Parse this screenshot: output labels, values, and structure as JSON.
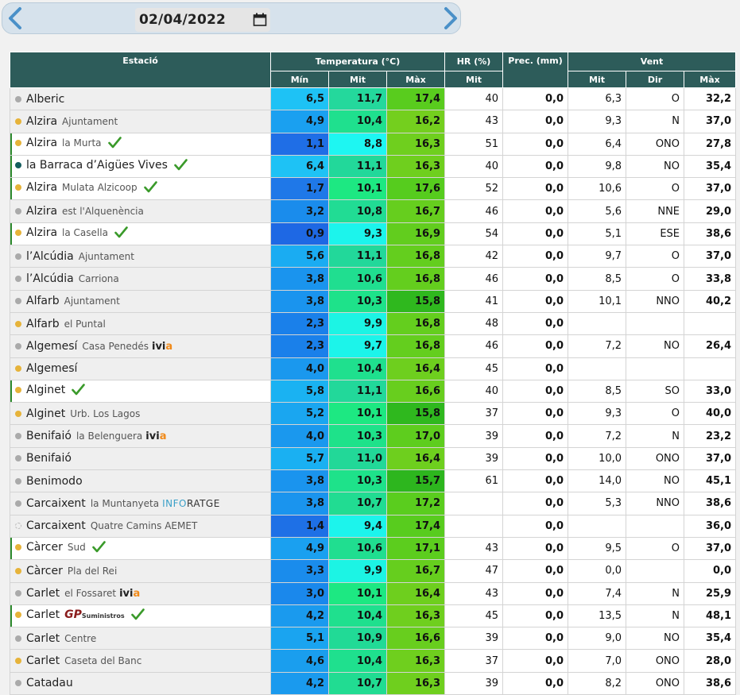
{
  "date": "02/04/2022",
  "headers": {
    "station": "Estació",
    "temperature": "Temperatura (°C)",
    "hr": "HR (%)",
    "prec": "Prec. (mm)",
    "wind": "Vent",
    "t_min": "Mín",
    "t_mit": "Mit",
    "t_max": "Màx",
    "hr_mit": "Mit",
    "w_mit": "Mit",
    "w_dir": "Dir",
    "w_max": "Màx"
  },
  "colors": {
    "header_bg": "#2d5c5a",
    "dot_gray": "#aaaaaa",
    "dot_orange": "#e6b33a",
    "dot_teal": "#155e5e",
    "check_green": "#3a9a2a"
  },
  "rows": [
    {
      "name": "Alberic",
      "sub": "",
      "dot": "gray",
      "check": false,
      "marked": false,
      "min": "6,5",
      "mit": "11,7",
      "max": "17,4",
      "hr": "40",
      "prec": "0,0",
      "wmit": "6,3",
      "wdir": "O",
      "wmax": "32,2",
      "cmin": "#1ec2f5",
      "cmit": "#24d89c",
      "cmax": "#59cc1e"
    },
    {
      "name": "Alzira",
      "sub": "Ajuntament",
      "dot": "orange",
      "check": false,
      "marked": false,
      "min": "4,9",
      "mit": "10,4",
      "max": "16,2",
      "hr": "43",
      "prec": "0,0",
      "wmit": "9,3",
      "wdir": "N",
      "wmax": "37,0",
      "cmin": "#1aa0f0",
      "cmit": "#1fe08e",
      "cmax": "#74cf1e"
    },
    {
      "name": "Alzira",
      "sub": "la Murta",
      "dot": "orange",
      "check": true,
      "marked": true,
      "min": "1,1",
      "mit": "8,8",
      "max": "16,3",
      "hr": "51",
      "prec": "0,0",
      "wmit": "6,4",
      "wdir": "ONO",
      "wmax": "27,8",
      "cmin": "#1f6ee6",
      "cmit": "#1ef6f2",
      "cmax": "#6fcf1e"
    },
    {
      "name": "la Barraca d’Aigües Vives",
      "sub": "",
      "dot": "teal",
      "check": true,
      "marked": true,
      "min": "6,4",
      "mit": "11,1",
      "max": "16,3",
      "hr": "40",
      "prec": "0,0",
      "wmit": "9,8",
      "wdir": "NO",
      "wmax": "35,4",
      "cmin": "#1ec2f5",
      "cmit": "#22d89a",
      "cmax": "#6fcf1e"
    },
    {
      "name": "Alzira",
      "sub": "Mulata Alzicoop",
      "dot": "orange",
      "check": true,
      "marked": true,
      "min": "1,7",
      "mit": "10,1",
      "max": "17,6",
      "hr": "52",
      "prec": "0,0",
      "wmit": "10,6",
      "wdir": "O",
      "wmax": "37,0",
      "cmin": "#1f78e8",
      "cmit": "#1de882",
      "cmax": "#56cc1e"
    },
    {
      "name": "Alzira",
      "sub": "est l'Alquenència",
      "dot": "gray",
      "check": false,
      "marked": false,
      "min": "3,2",
      "mit": "10,8",
      "max": "16,7",
      "hr": "46",
      "prec": "0,0",
      "wmit": "5,6",
      "wdir": "NNE",
      "wmax": "29,0",
      "cmin": "#1a8cec",
      "cmit": "#21dc94",
      "cmax": "#66ce1e"
    },
    {
      "name": "Alzira",
      "sub": "la Casella",
      "dot": "orange",
      "check": true,
      "marked": true,
      "min": "0,9",
      "mit": "9,3",
      "max": "16,9",
      "hr": "54",
      "prec": "0,0",
      "wmit": "5,1",
      "wdir": "ESE",
      "wmax": "38,6",
      "cmin": "#1e68e4",
      "cmit": "#1cf4ec",
      "cmax": "#62cd1e"
    },
    {
      "name": "l’Alcúdia",
      "sub": "Ajuntament",
      "dot": "gray",
      "check": false,
      "marked": false,
      "min": "5,6",
      "mit": "11,1",
      "max": "16,8",
      "hr": "42",
      "prec": "0,0",
      "wmit": "9,7",
      "wdir": "O",
      "wmax": "37,0",
      "cmin": "#1aacf2",
      "cmit": "#22d89a",
      "cmax": "#64ce1e"
    },
    {
      "name": "l’Alcúdia",
      "sub": "Carriona",
      "dot": "gray",
      "check": false,
      "marked": false,
      "min": "3,8",
      "mit": "10,6",
      "max": "16,8",
      "hr": "46",
      "prec": "0,0",
      "wmit": "8,5",
      "wdir": "O",
      "wmax": "33,8",
      "cmin": "#1a94ee",
      "cmit": "#20de90",
      "cmax": "#64ce1e"
    },
    {
      "name": "Alfarb",
      "sub": "Ajuntament",
      "dot": "gray",
      "check": false,
      "marked": false,
      "min": "3,8",
      "mit": "10,3",
      "max": "15,8",
      "hr": "41",
      "prec": "0,0",
      "wmit": "10,1",
      "wdir": "NNO",
      "wmax": "40,2",
      "cmin": "#1a94ee",
      "cmit": "#1ee28a",
      "cmax": "#2fb81e"
    },
    {
      "name": "Alfarb",
      "sub": "el Puntal",
      "dot": "orange",
      "check": false,
      "marked": false,
      "min": "2,3",
      "mit": "9,9",
      "max": "16,8",
      "hr": "48",
      "prec": "0,0",
      "wmit": "",
      "wdir": "",
      "wmax": "",
      "cmin": "#1a80ea",
      "cmit": "#1cf4e4",
      "cmax": "#64ce1e"
    },
    {
      "name": "Algemesí",
      "sub": "Casa Penedés",
      "dot": "gray",
      "check": false,
      "marked": false,
      "ivia": true,
      "min": "2,3",
      "mit": "9,7",
      "max": "16,8",
      "hr": "46",
      "prec": "0,0",
      "wmit": "7,2",
      "wdir": "NO",
      "wmax": "26,4",
      "cmin": "#1a80ea",
      "cmit": "#1cf4ea",
      "cmax": "#64ce1e"
    },
    {
      "name": "Algemesí",
      "sub": "",
      "dot": "orange",
      "check": false,
      "marked": false,
      "min": "4,0",
      "mit": "10,4",
      "max": "16,4",
      "hr": "45",
      "prec": "0,0",
      "wmit": "",
      "wdir": "",
      "wmax": "",
      "cmin": "#1a98ee",
      "cmit": "#1fe08e",
      "cmax": "#6ecf1e"
    },
    {
      "name": "Alginet",
      "sub": "",
      "dot": "orange",
      "check": true,
      "marked": true,
      "min": "5,8",
      "mit": "11,1",
      "max": "16,6",
      "hr": "40",
      "prec": "0,0",
      "wmit": "8,5",
      "wdir": "SO",
      "wmax": "33,0",
      "cmin": "#1ab2f2",
      "cmit": "#22d89a",
      "cmax": "#68ce1e"
    },
    {
      "name": "Alginet",
      "sub": "Urb. Los Lagos",
      "dot": "orange",
      "check": false,
      "marked": false,
      "min": "5,2",
      "mit": "10,1",
      "max": "15,8",
      "hr": "37",
      "prec": "0,0",
      "wmit": "9,3",
      "wdir": "O",
      "wmax": "40,0",
      "cmin": "#1aa6f0",
      "cmit": "#1de882",
      "cmax": "#2fb81e"
    },
    {
      "name": "Benifaió",
      "sub": "la Belenguera",
      "dot": "gray",
      "check": false,
      "marked": false,
      "ivia": true,
      "min": "4,0",
      "mit": "10,3",
      "max": "17,0",
      "hr": "39",
      "prec": "0,0",
      "wmit": "7,2",
      "wdir": "N",
      "wmax": "23,2",
      "cmin": "#1a98ee",
      "cmit": "#1ee28a",
      "cmax": "#5ecd1e"
    },
    {
      "name": "Benifaió",
      "sub": "",
      "dot": "gray",
      "check": false,
      "marked": false,
      "min": "5,7",
      "mit": "11,0",
      "max": "16,4",
      "hr": "39",
      "prec": "0,0",
      "wmit": "10,0",
      "wdir": "ONO",
      "wmax": "37,0",
      "cmin": "#1ab0f2",
      "cmit": "#22d898",
      "cmax": "#6ecf1e"
    },
    {
      "name": "Benimodo",
      "sub": "",
      "dot": "gray",
      "check": false,
      "marked": false,
      "min": "3,8",
      "mit": "10,3",
      "max": "15,7",
      "hr": "61",
      "prec": "0,0",
      "wmit": "14,0",
      "wdir": "NO",
      "wmax": "45,1",
      "cmin": "#1a94ee",
      "cmit": "#1ee28a",
      "cmax": "#2db61e"
    },
    {
      "name": "Carcaixent",
      "sub": "la Muntanyeta",
      "dot": "gray",
      "check": false,
      "marked": false,
      "info": true,
      "min": "3,8",
      "mit": "10,7",
      "max": "17,2",
      "hr": "",
      "prec": "0,0",
      "wmit": "5,3",
      "wdir": "NNO",
      "wmax": "38,6",
      "cmin": "#1a94ee",
      "cmit": "#21dc92",
      "cmax": "#5acd1e"
    },
    {
      "name": "Carcaixent",
      "sub": "Quatre Camins AEMET",
      "dot": "dashed",
      "check": false,
      "marked": false,
      "min": "1,4",
      "mit": "9,4",
      "max": "17,4",
      "hr": "",
      "prec": "0,0",
      "wmit": "",
      "wdir": "",
      "wmax": "36,0",
      "cmin": "#1e70e6",
      "cmit": "#1cf4ec",
      "cmax": "#58cc1e"
    },
    {
      "name": "Càrcer",
      "sub": "Sud",
      "dot": "orange",
      "check": true,
      "marked": true,
      "min": "4,9",
      "mit": "10,6",
      "max": "17,1",
      "hr": "43",
      "prec": "0,0",
      "wmit": "9,5",
      "wdir": "O",
      "wmax": "37,0",
      "cmin": "#1aa0f0",
      "cmit": "#20de90",
      "cmax": "#5ccd1e"
    },
    {
      "name": "Càrcer",
      "sub": "Pla del Rei",
      "dot": "orange",
      "check": false,
      "marked": false,
      "min": "3,3",
      "mit": "9,9",
      "max": "16,7",
      "hr": "47",
      "prec": "0,0",
      "wmit": "0,0",
      "wdir": "",
      "wmax": "0,0",
      "cmin": "#1a8cec",
      "cmit": "#1cf4e4",
      "cmax": "#66ce1e"
    },
    {
      "name": "Carlet",
      "sub": "el Fossaret",
      "dot": "gray",
      "check": false,
      "marked": false,
      "ivia": true,
      "min": "3,0",
      "mit": "10,1",
      "max": "16,4",
      "hr": "43",
      "prec": "0,0",
      "wmit": "7,4",
      "wdir": "N",
      "wmax": "25,9",
      "cmin": "#1a88ec",
      "cmit": "#1de882",
      "cmax": "#6ecf1e"
    },
    {
      "name": "Carlet",
      "sub": "",
      "dot": "orange",
      "check": true,
      "marked": true,
      "gp": true,
      "min": "4,2",
      "mit": "10,4",
      "max": "16,3",
      "hr": "45",
      "prec": "0,0",
      "wmit": "13,5",
      "wdir": "N",
      "wmax": "48,1",
      "cmin": "#1a9aee",
      "cmit": "#1fe08e",
      "cmax": "#6fcf1e"
    },
    {
      "name": "Carlet",
      "sub": "Centre",
      "dot": "gray",
      "check": false,
      "marked": false,
      "min": "5,1",
      "mit": "10,9",
      "max": "16,6",
      "hr": "39",
      "prec": "0,0",
      "wmit": "9,0",
      "wdir": "NO",
      "wmax": "35,4",
      "cmin": "#1aa4f0",
      "cmit": "#21da96",
      "cmax": "#68ce1e"
    },
    {
      "name": "Carlet",
      "sub": "Caseta del Banc",
      "dot": "orange",
      "check": false,
      "marked": false,
      "min": "4,6",
      "mit": "10,4",
      "max": "16,3",
      "hr": "37",
      "prec": "0,0",
      "wmit": "7,0",
      "wdir": "ONO",
      "wmax": "28,0",
      "cmin": "#1a9eee",
      "cmit": "#1fe08e",
      "cmax": "#6fcf1e"
    },
    {
      "name": "Catadau",
      "sub": "",
      "dot": "gray",
      "check": false,
      "marked": false,
      "min": "4,2",
      "mit": "10,7",
      "max": "16,3",
      "hr": "39",
      "prec": "0,0",
      "wmit": "8,2",
      "wdir": "ONO",
      "wmax": "38,6",
      "cmin": "#1a9aee",
      "cmit": "#21dc92",
      "cmax": "#6fcf1e"
    }
  ],
  "logos": {
    "ivia_prefix": "ivi",
    "ivia_suffix": "a",
    "info_a": "INFO",
    "info_b": "RATGE",
    "gp_main": "GP",
    "gp_small": "Suministros"
  }
}
